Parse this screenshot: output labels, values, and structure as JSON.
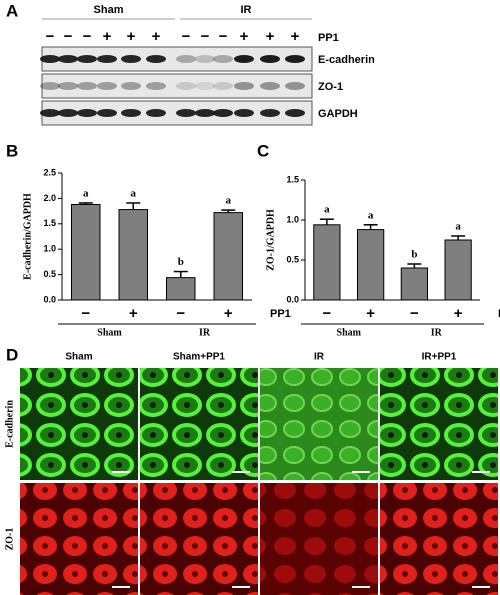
{
  "panel_a": {
    "panel_label": "A",
    "groups": [
      "Sham",
      "IR"
    ],
    "signs": [
      "−",
      "−",
      "−",
      "+",
      "+",
      "+",
      "−",
      "−",
      "−",
      "+",
      "+",
      "+"
    ],
    "treatment": "PP1",
    "blot_labels": [
      "E-cadherin",
      "ZO-1",
      "GAPDH"
    ]
  },
  "chart_data": [
    {
      "type": "bar",
      "panel_label": "B",
      "ylabel": "E-cadherin/GAPDH",
      "categories": [
        "−",
        "+",
        "−",
        "+"
      ],
      "groups": [
        "Sham",
        "IR"
      ],
      "treatment": "PP1",
      "values": [
        1.88,
        1.78,
        0.44,
        1.72
      ],
      "errors": [
        0.03,
        0.13,
        0.12,
        0.05
      ],
      "letters": [
        "a",
        "a",
        "b",
        "a"
      ],
      "color": "#7f7f7f",
      "ylim": [
        0,
        2.5
      ],
      "yticks": [
        {
          "value": 0,
          "label": "0.0"
        },
        0.5,
        {
          "value": 1,
          "label": "1.0"
        },
        1.5,
        {
          "value": 2,
          "label": "2.0"
        },
        2.5
      ]
    },
    {
      "type": "bar",
      "panel_label": "C",
      "ylabel": "ZO-1/GAPDH",
      "categories": [
        "−",
        "+",
        "−",
        "+"
      ],
      "groups": [
        "Sham",
        "IR"
      ],
      "treatment": "PP1",
      "values": [
        0.94,
        0.88,
        0.4,
        0.75
      ],
      "errors": [
        0.07,
        0.06,
        0.05,
        0.05
      ],
      "letters": [
        "a",
        "a",
        "b",
        "a"
      ],
      "color": "#7f7f7f",
      "ylim": [
        0,
        1.5
      ],
      "yticks": [
        {
          "value": 0,
          "label": "0.0"
        },
        0.5,
        {
          "value": 1,
          "label": "1.0"
        },
        1.5
      ]
    }
  ],
  "panel_d": {
    "panel_label": "D",
    "columns": [
      "Sham",
      "Sham+PP1",
      "IR",
      "IR+PP1"
    ],
    "rows": [
      "E-cadherin",
      "ZO-1"
    ]
  }
}
